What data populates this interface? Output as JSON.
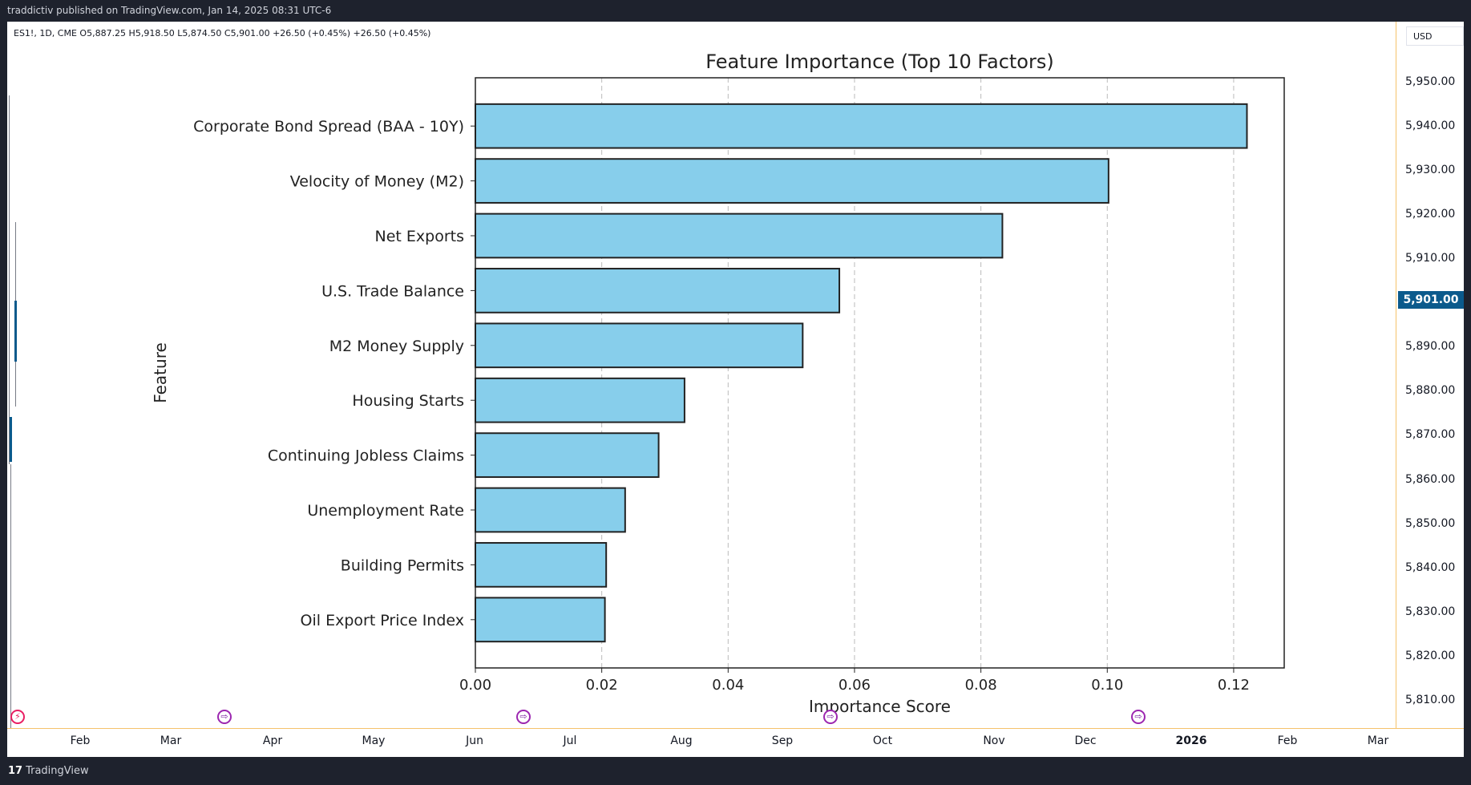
{
  "header": {
    "publisher": "traddictiv published on TradingView.com, Jan 14, 2025 08:31 UTC-6"
  },
  "legend": {
    "text": "ES1!, 1D, CME  O5,887.25  H5,918.50  L5,874.50  C5,901.00  +26.50 (+0.45%)  +26.50 (+0.45%)"
  },
  "price_axis": {
    "currency": "USD",
    "labels": [
      "5,950.00",
      "5,940.00",
      "5,930.00",
      "5,920.00",
      "5,910.00",
      "5,890.00",
      "5,880.00",
      "5,870.00",
      "5,860.00",
      "5,850.00",
      "5,840.00",
      "5,830.00",
      "5,820.00",
      "5,810.00"
    ],
    "current": "5,901.00",
    "current_color": "#0b5a8c"
  },
  "time_axis": {
    "labels": [
      "Feb",
      "Mar",
      "Apr",
      "May",
      "Jun",
      "Jul",
      "Aug",
      "Sep",
      "Oct",
      "Nov",
      "Dec",
      "2026",
      "Feb",
      "Mar"
    ],
    "bold_label": "2026"
  },
  "markers": [
    "lightning-icon",
    "arrow-right-circle-icon",
    "arrow-right-circle-icon",
    "arrow-right-circle-icon",
    "arrow-right-circle-icon"
  ],
  "footer": {
    "logo": "17",
    "brand": "TradingView"
  },
  "chart_data": {
    "type": "bar",
    "orientation": "horizontal",
    "title": "Feature Importance (Top 10 Factors)",
    "xlabel": "Importance Score",
    "ylabel": "Feature",
    "categories": [
      "Corporate Bond Spread (BAA - 10Y)",
      "Velocity of Money (M2)",
      "Net Exports",
      "U.S. Trade Balance",
      "M2 Money Supply",
      "Housing Starts",
      "Continuing Jobless Claims",
      "Unemployment Rate",
      "Building Permits",
      "Oil Export Price Index"
    ],
    "values": [
      0.1221,
      0.1002,
      0.0834,
      0.0576,
      0.0518,
      0.0331,
      0.029,
      0.0237,
      0.0207,
      0.0205
    ],
    "xticks": [
      "0.00",
      "0.02",
      "0.04",
      "0.06",
      "0.08",
      "0.10",
      "0.12"
    ],
    "xlim": [
      0,
      0.128
    ],
    "grid": "vertical dashed",
    "bar_color": "#87ceeb",
    "edge_color": "#222222"
  }
}
